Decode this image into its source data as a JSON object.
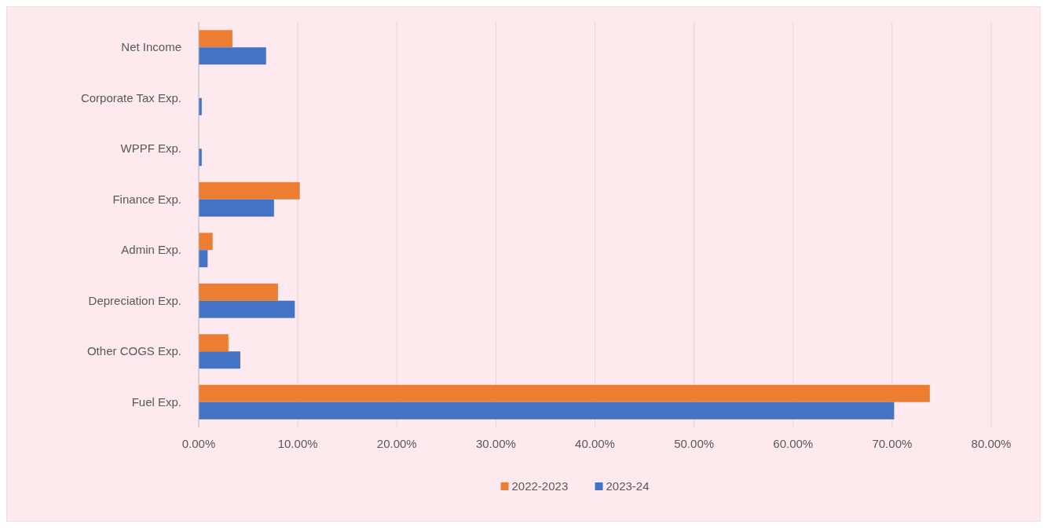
{
  "chart_data": {
    "type": "bar",
    "orientation": "horizontal",
    "categories": [
      "Net Income",
      "Corporate Tax Exp.",
      "WPPF Exp.",
      "Finance Exp.",
      "Admin Exp.",
      "Depreciation Exp.",
      "Other COGS Exp.",
      "Fuel Exp."
    ],
    "series": [
      {
        "name": "2022-2023",
        "color": "#ed7d31",
        "values": [
          3.4,
          0,
          0,
          10.2,
          1.4,
          8.0,
          3.0,
          73.8
        ]
      },
      {
        "name": "2023-24",
        "color": "#4472c4",
        "values": [
          6.8,
          0.3,
          0.3,
          7.6,
          0.9,
          9.7,
          4.2,
          70.2
        ]
      }
    ],
    "xlim": [
      0,
      80
    ],
    "xticks": [
      {
        "value": 0,
        "label": "0.00%"
      },
      {
        "value": 10,
        "label": "10.00%"
      },
      {
        "value": 20,
        "label": "20.00%"
      },
      {
        "value": 30,
        "label": "30.00%"
      },
      {
        "value": 40,
        "label": "40.00%"
      },
      {
        "value": 50,
        "label": "50.00%"
      },
      {
        "value": 60,
        "label": "60.00%"
      },
      {
        "value": 70,
        "label": "70.00%"
      },
      {
        "value": 80,
        "label": "80.00%"
      }
    ],
    "grid": "x",
    "legend": "bottom"
  }
}
